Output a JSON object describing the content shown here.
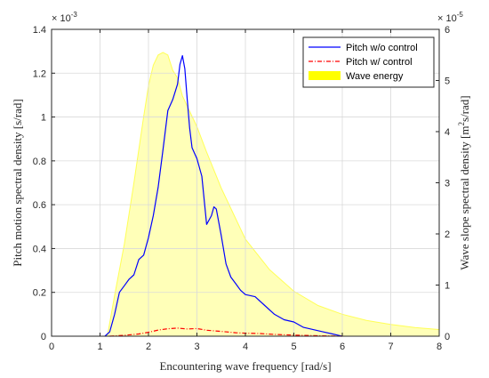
{
  "chart_data": {
    "type": "line",
    "xlabel": "Encountering wave frequency [rad/s]",
    "ylabel_left": "Pitch motion spectral density [s/rad]",
    "ylabel_right_prefix": "Wave slope spectral density [m",
    "ylabel_right_sup": "2",
    "ylabel_right_suffix": "s/rad]",
    "xlim": [
      0,
      8
    ],
    "ylim_left": [
      0,
      0.0014
    ],
    "ylim_right": [
      0,
      6e-05
    ],
    "left_multiplier_prefix": "× 10",
    "left_multiplier_exp": "-3",
    "right_multiplier_prefix": "× 10",
    "right_multiplier_exp": "-5",
    "x_ticks": [
      "0",
      "1",
      "2",
      "3",
      "4",
      "5",
      "6",
      "7",
      "8"
    ],
    "left_ticks": [
      "0",
      "0.2",
      "0.4",
      "0.6",
      "0.8",
      "1",
      "1.2",
      "1.4"
    ],
    "right_ticks": [
      "0",
      "1",
      "2",
      "3",
      "4",
      "5",
      "6"
    ],
    "grid": true,
    "legend_position": "top-right",
    "series": [
      {
        "name": "Pitch w/o control",
        "axis": "left",
        "color": "#0000ff",
        "style": "solid",
        "x": [
          1.1,
          1.2,
          1.3,
          1.4,
          1.5,
          1.6,
          1.7,
          1.8,
          1.9,
          2.0,
          2.1,
          2.2,
          2.3,
          2.4,
          2.5,
          2.6,
          2.65,
          2.7,
          2.75,
          2.8,
          2.85,
          2.9,
          3.0,
          3.1,
          3.2,
          3.3,
          3.35,
          3.4,
          3.5,
          3.6,
          3.7,
          3.8,
          3.9,
          4.0,
          4.2,
          4.4,
          4.6,
          4.8,
          5.0,
          5.2,
          5.4,
          5.6,
          5.8,
          6.0
        ],
        "values": [
          0.0,
          2e-05,
          0.0001,
          0.0002,
          0.00023,
          0.00026,
          0.00028,
          0.00035,
          0.00037,
          0.00045,
          0.00055,
          0.00068,
          0.00085,
          0.00103,
          0.00108,
          0.00115,
          0.00124,
          0.00128,
          0.00122,
          0.00108,
          0.00095,
          0.00086,
          0.00081,
          0.00073,
          0.00051,
          0.00055,
          0.00059,
          0.00058,
          0.00046,
          0.00033,
          0.00027,
          0.00024,
          0.00021,
          0.00019,
          0.00018,
          0.00014,
          0.0001,
          7.5e-05,
          6.5e-05,
          4e-05,
          3e-05,
          2e-05,
          1e-05,
          0.0
        ]
      },
      {
        "name": "Pitch w/ control",
        "axis": "left",
        "color": "#ff0000",
        "style": "dashdot",
        "x": [
          1.2,
          1.5,
          1.8,
          2.0,
          2.2,
          2.4,
          2.6,
          2.8,
          3.0,
          3.2,
          3.5,
          3.8,
          4.0,
          4.3,
          4.6,
          5.0,
          5.5,
          6.0
        ],
        "values": [
          0.0,
          4e-06,
          1e-05,
          1.8e-05,
          2.8e-05,
          3.4e-05,
          3.7e-05,
          3.3e-05,
          3.5e-05,
          2.7e-05,
          2.2e-05,
          1.6e-05,
          1.4e-05,
          1.2e-05,
          8e-06,
          5e-06,
          2e-06,
          0.0
        ]
      },
      {
        "name": "Wave energy",
        "axis": "right",
        "color": "#ffff00",
        "style": "filled",
        "x": [
          1.15,
          1.3,
          1.5,
          1.7,
          1.9,
          2.0,
          2.1,
          2.2,
          2.3,
          2.4,
          2.5,
          2.6,
          2.7,
          2.8,
          3.0,
          3.2,
          3.5,
          4.0,
          4.5,
          5.0,
          5.5,
          6.0,
          6.5,
          7.0,
          7.5,
          8.0
        ],
        "values": [
          0.0,
          8e-06,
          1.8e-05,
          3e-05,
          4.3e-05,
          4.9e-05,
          5.3e-05,
          5.5e-05,
          5.55e-05,
          5.5e-05,
          5.2e-05,
          5.05e-05,
          4.7e-05,
          4.5e-05,
          4.1e-05,
          3.6e-05,
          2.9e-05,
          1.9e-05,
          1.3e-05,
          8.8e-06,
          6e-06,
          4.3e-06,
          3.1e-06,
          2.3e-06,
          1.7e-06,
          1.3e-06
        ]
      }
    ]
  }
}
